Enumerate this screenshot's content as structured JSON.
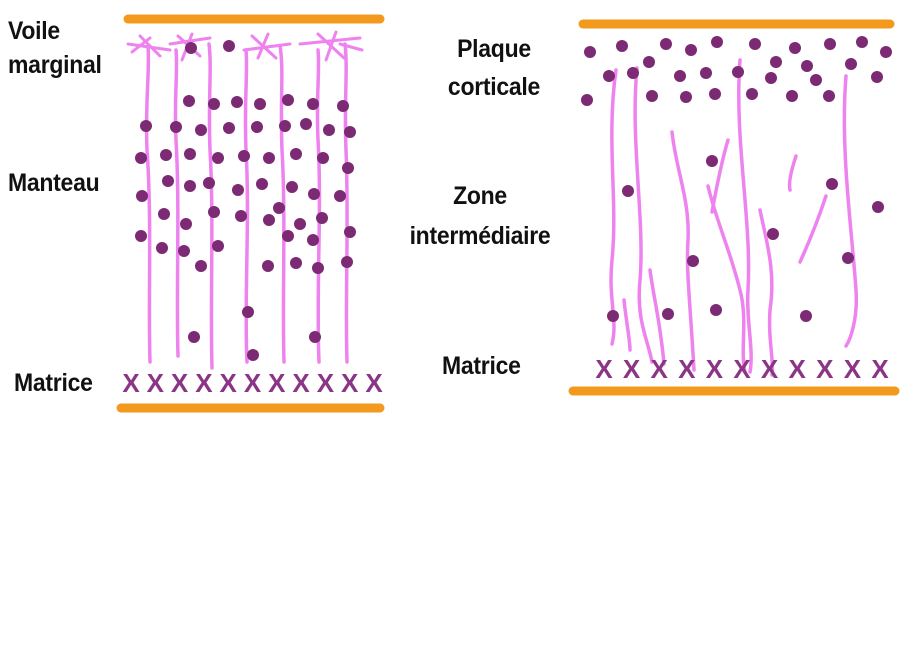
{
  "colors": {
    "boundary": "#f39a1e",
    "fiber": "#ee82ee",
    "cell": "#7b2a73",
    "matrix_mark": "#8a3585",
    "text": "#111111"
  },
  "left_panel": {
    "labels": {
      "top": "Voile\nmarginal",
      "middle": "Manteau",
      "bottom": "Matrice"
    },
    "matrix_mark_glyph": "X",
    "matrix_mark_count": 11
  },
  "right_panel": {
    "labels": {
      "top": "Plaque\ncorticale",
      "middle": "Zone\nintermédiaire",
      "bottom": "Matrice"
    },
    "matrix_mark_glyph": "X",
    "matrix_mark_count": 11
  }
}
